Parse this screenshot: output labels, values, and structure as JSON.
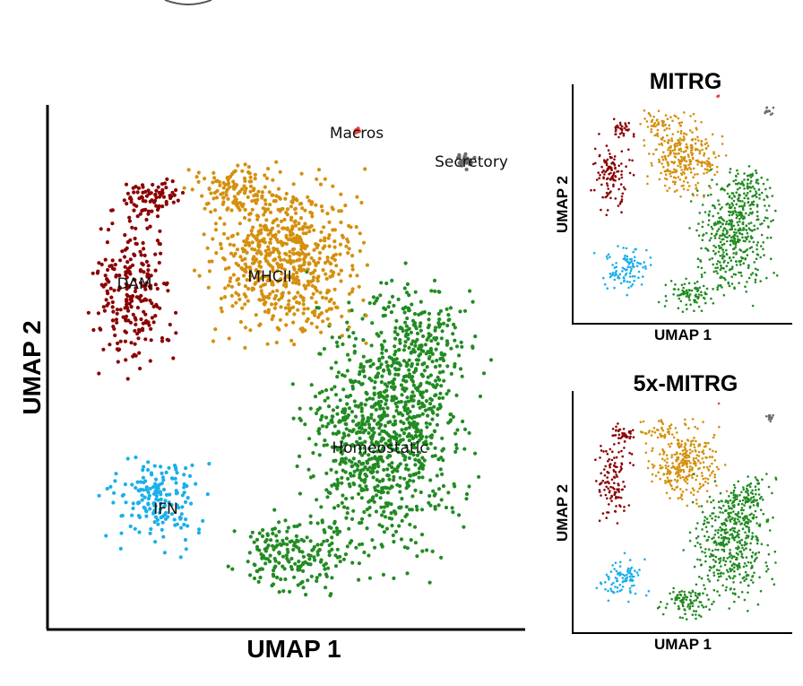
{
  "colors": {
    "dam": "#8b0000",
    "mhcii": "#d4900e",
    "homeostatic": "#228b22",
    "ifn": "#1aafea",
    "macros": "#f04040",
    "secretory": "#6b6b6b"
  },
  "chart_data": [
    {
      "type": "scatter",
      "title": "",
      "xlabel": "UMAP 1",
      "ylabel": "UMAP 2",
      "axis_ticks": "none",
      "clusters": [
        {
          "name": "DAM",
          "color": "#8b0000"
        },
        {
          "name": "MHCII",
          "color": "#d4900e"
        },
        {
          "name": "Homeostatic",
          "color": "#228b22"
        },
        {
          "name": "IFN",
          "color": "#1aafea"
        },
        {
          "name": "Macros",
          "color": "#f04040"
        },
        {
          "name": "Secretory",
          "color": "#6b6b6b"
        }
      ]
    },
    {
      "type": "scatter",
      "title": "MITRG",
      "xlabel": "UMAP 1",
      "ylabel": "UMAP 2",
      "axis_ticks": "none",
      "legend": "none"
    },
    {
      "type": "scatter",
      "title": "5x-MITRG",
      "xlabel": "UMAP 1",
      "ylabel": "UMAP 2",
      "axis_ticks": "none",
      "legend": "none"
    }
  ]
}
